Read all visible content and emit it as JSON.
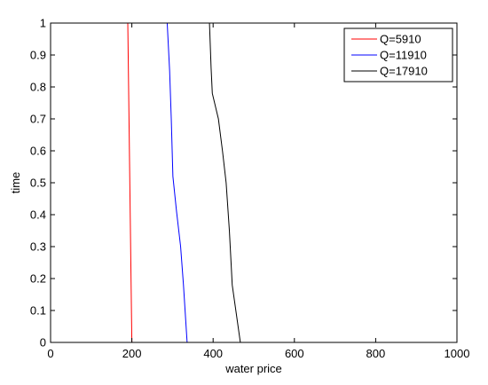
{
  "chart_data": {
    "type": "line",
    "title": "",
    "xlabel": "water price",
    "ylabel": "time",
    "xlim": [
      0,
      1000
    ],
    "ylim": [
      0,
      1
    ],
    "xticks": [
      0,
      200,
      400,
      600,
      800,
      1000
    ],
    "xtick_labels": [
      "0",
      "200",
      "400",
      "600",
      "800",
      "1000"
    ],
    "yticks": [
      0,
      0.1,
      0.2,
      0.3,
      0.4,
      0.5,
      0.6,
      0.7,
      0.8,
      0.9,
      1
    ],
    "ytick_labels": [
      "0",
      "0.1",
      "0.2",
      "0.3",
      "0.4",
      "0.5",
      "0.6",
      "0.7",
      "0.8",
      "0.9",
      "1"
    ],
    "grid": false,
    "legend_position": "top-right",
    "series": [
      {
        "name": "Q=5910",
        "color": "#ff0000",
        "points": [
          [
            200,
            0
          ],
          [
            190,
            1
          ]
        ]
      },
      {
        "name": "Q=11910",
        "color": "#0000ff",
        "points": [
          [
            336,
            0
          ],
          [
            327,
            0.18
          ],
          [
            320,
            0.3
          ],
          [
            310,
            0.41
          ],
          [
            301,
            0.52
          ],
          [
            297,
            0.7
          ],
          [
            293,
            0.85
          ],
          [
            287,
            1
          ]
        ]
      },
      {
        "name": "Q=17910",
        "color": "#000000",
        "points": [
          [
            467,
            0
          ],
          [
            447,
            0.18
          ],
          [
            440,
            0.35
          ],
          [
            432,
            0.5
          ],
          [
            423,
            0.6
          ],
          [
            413,
            0.7
          ],
          [
            398,
            0.78
          ],
          [
            395,
            0.86
          ],
          [
            391,
            1
          ]
        ]
      }
    ]
  }
}
